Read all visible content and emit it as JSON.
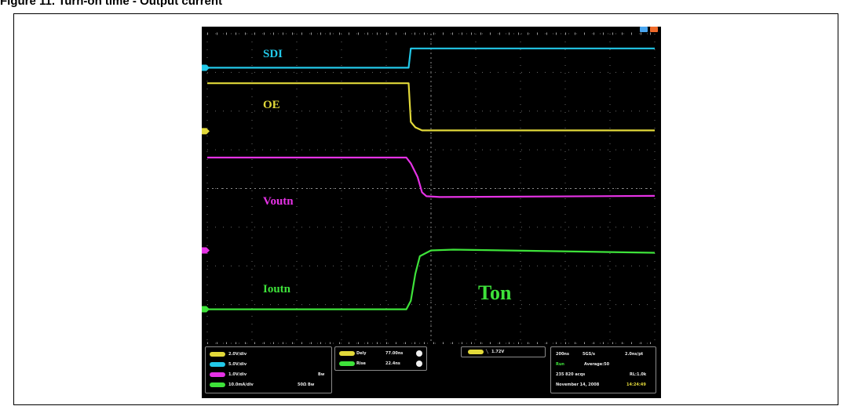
{
  "page_title": "Figure 11. Turn-on time - Output current ",
  "window_icons": [
    "minimize-icon",
    "close-icon"
  ],
  "chart_data": {
    "type": "line",
    "x_range": [
      -5,
      5
    ],
    "y_range": [
      -4,
      4
    ],
    "grid": true,
    "series": [
      {
        "name": "SDI",
        "color": "#22c8e8",
        "points": [
          [
            -5,
            3.12
          ],
          [
            -0.5,
            3.12
          ],
          [
            -0.45,
            3.62
          ],
          [
            5,
            3.62
          ]
        ]
      },
      {
        "name": "OE",
        "color": "#e2d93a",
        "points": [
          [
            -5,
            2.72
          ],
          [
            -0.5,
            2.72
          ],
          [
            -0.45,
            1.72
          ],
          [
            -0.35,
            1.58
          ],
          [
            -0.2,
            1.5
          ],
          [
            5,
            1.5
          ]
        ]
      },
      {
        "name": "Voutn",
        "color": "#e532e5",
        "points": [
          [
            -5,
            0.8
          ],
          [
            -0.55,
            0.8
          ],
          [
            -0.45,
            0.65
          ],
          [
            -0.3,
            0.3
          ],
          [
            -0.2,
            -0.1
          ],
          [
            -0.1,
            -0.2
          ],
          [
            0.2,
            -0.22
          ],
          [
            5,
            -0.19
          ]
        ]
      },
      {
        "name": "Ioutn",
        "color": "#3ee23a",
        "points": [
          [
            -5,
            -3.12
          ],
          [
            -0.55,
            -3.12
          ],
          [
            -0.45,
            -2.9
          ],
          [
            -0.35,
            -2.2
          ],
          [
            -0.25,
            -1.75
          ],
          [
            0,
            -1.6
          ],
          [
            0.5,
            -1.58
          ],
          [
            5,
            -1.66
          ]
        ]
      }
    ],
    "ground_markers": [
      {
        "name": "SDI",
        "color": "#22c8e8",
        "y": 3.12
      },
      {
        "name": "OE",
        "color": "#e2d93a",
        "y": 1.48
      },
      {
        "name": "Voutn",
        "color": "#e532e5",
        "y": -1.6
      },
      {
        "name": "Ioutn",
        "color": "#3ee23a",
        "y": -3.12
      }
    ],
    "annotations": {
      "trace_labels": [
        "SDI",
        "OE",
        "Voutn",
        "Ioutn"
      ],
      "ton_label": "Ton"
    }
  },
  "status_bar": {
    "channels": [
      {
        "color": "#e2d93a",
        "label": "2.0V/div",
        "extra": ""
      },
      {
        "color": "#22c8e8",
        "label": "5.0V/div",
        "extra": ""
      },
      {
        "color": "#e532e5",
        "label": "1.0V/div",
        "extra": "Bw"
      },
      {
        "color": "#3ee23a",
        "label": "10.0mA/div",
        "extra": "50Ω  Bw"
      }
    ],
    "measurements": [
      {
        "color": "#e2d93a",
        "name": "Dely",
        "value": "77.00ns"
      },
      {
        "color": "#3ee23a",
        "name": "Rise",
        "value": "22.4ns"
      }
    ],
    "trigger": {
      "color": "#e2d93a",
      "value": "1.72V"
    },
    "acquisition": {
      "timebase": "200ns",
      "sample_rate": "5GS/s",
      "record": "2.0ns/pt",
      "state": "Run",
      "mode": "Average:50",
      "acqs": "235 820 acqs",
      "rl": "RL:1.0k",
      "date": "November 14, 2008",
      "time": "14:24:49"
    }
  }
}
